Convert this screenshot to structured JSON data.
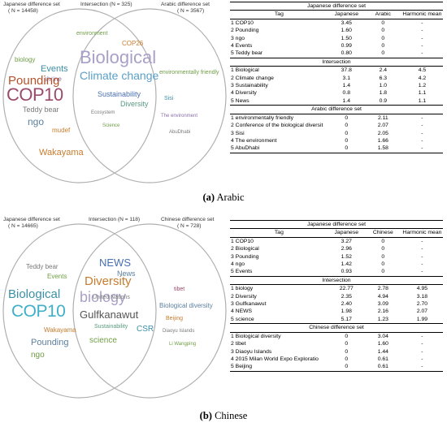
{
  "panel_a": {
    "caption": {
      "letter": "(a)",
      "text": " Arabic"
    },
    "venn": {
      "left_label": "Japanese difference set",
      "left_n": "( N = 14458)",
      "middle_label": "Intersection (N = 325)",
      "right_label": "Arabic difference set",
      "right_n": "( N = 3567)",
      "left_words": [
        "Pounding",
        "COP10",
        "biology",
        "Events",
        "shrine",
        "Teddy bear",
        "ngo",
        "mudef",
        "Wakayama"
      ],
      "middle_words": [
        "Biological",
        "Climate change",
        "Sustainability",
        "Diversity",
        "environment",
        "COP26",
        "Ecosystem",
        "Science"
      ],
      "right_words": [
        "environmentally friendly",
        "Sisi",
        "The environment",
        "AbuDhabi"
      ]
    },
    "table": {
      "sections": [
        {
          "title": "Japanese difference set",
          "rows": [
            [
              "1",
              "COP10",
              "3.45",
              "0",
              "-"
            ],
            [
              "2",
              "Pounding",
              "1.60",
              "0",
              "-"
            ],
            [
              "3",
              "ngo",
              "1.50",
              "0",
              "-"
            ],
            [
              "4",
              "Events",
              "0.99",
              "0",
              "-"
            ],
            [
              "5",
              "Teddy bear",
              "0.80",
              "0",
              "-"
            ]
          ]
        },
        {
          "title": "Intersection",
          "rows": [
            [
              "1",
              "Biological",
              "37.8",
              "2.4",
              "4.5"
            ],
            [
              "2",
              "Climate change",
              "3.1",
              "6.3",
              "4.2"
            ],
            [
              "3",
              "Sustainability",
              "1.4",
              "1.0",
              "1.2"
            ],
            [
              "4",
              "Diversity",
              "0.8",
              "1.8",
              "1.1"
            ],
            [
              "5",
              "News",
              "1.4",
              "0.9",
              "1.1"
            ]
          ]
        },
        {
          "title": "Arabic difference set",
          "rows": [
            [
              "1",
              "environmentally friendly",
              "0",
              "2.11",
              "-"
            ],
            [
              "2",
              "Conference of the biological diversit",
              "0",
              "2.07",
              "-"
            ],
            [
              "3",
              "Sisi",
              "0",
              "2.05",
              "-"
            ],
            [
              "4",
              "The environment",
              "0",
              "1.66",
              "-"
            ],
            [
              "5",
              "AbuDhabi",
              "0",
              "1.58",
              "-"
            ]
          ]
        }
      ],
      "header": {
        "tag": "Tag",
        "lang1": "Japanese",
        "lang2": "Arabic",
        "hmean": "Harmonic mean"
      }
    }
  },
  "panel_b": {
    "caption": {
      "letter": "(b)",
      "text": " Chinese"
    },
    "venn": {
      "left_label": "Japanese difference set",
      "left_n": "( N = 14665)",
      "middle_label": "Intersection (N = 118)",
      "right_label": "Chinese difference set",
      "right_n": "( N = 728)",
      "left_words": [
        "Biological",
        "COP10",
        "Pounding",
        "ngo",
        "Events",
        "Teddy bear",
        "Wakayama"
      ],
      "middle_words": [
        "NEWS",
        "Diversity",
        "biology",
        "Gulfkanawut",
        "United Nations",
        "Sustainability",
        "science",
        "News",
        "CSR"
      ],
      "right_words": [
        "Biological diversity",
        "tibet",
        "Beijing",
        "Diaoyu Islands",
        "Li Wangping"
      ]
    },
    "table": {
      "sections": [
        {
          "title": "Japanese difference set",
          "rows": [
            [
              "1",
              "COP10",
              "3.27",
              "0",
              "-"
            ],
            [
              "2",
              "Biological",
              "2.96",
              "0",
              "-"
            ],
            [
              "3",
              "Pounding",
              "1.52",
              "0",
              "-"
            ],
            [
              "4",
              "ngo",
              "1.42",
              "0",
              "-"
            ],
            [
              "5",
              "Events",
              "0.93",
              "0",
              "-"
            ]
          ]
        },
        {
          "title": "Intersection",
          "rows": [
            [
              "1",
              "biology",
              "22.77",
              "2.78",
              "4.95"
            ],
            [
              "2",
              "Diversity",
              "2.35",
              "4.94",
              "3.18"
            ],
            [
              "3",
              "Gulfkanawut",
              "2.40",
              "3.09",
              "2.70"
            ],
            [
              "4",
              "NEWS",
              "1.98",
              "2.16",
              "2.07"
            ],
            [
              "5",
              "science",
              "5.17",
              "1.23",
              "1.99"
            ]
          ]
        },
        {
          "title": "Chinese difference set",
          "rows": [
            [
              "1",
              "Biological diversity",
              "0",
              "3.04",
              "-"
            ],
            [
              "2",
              "tibet",
              "0",
              "1.60",
              "-"
            ],
            [
              "3",
              "Diaoyu Islands",
              "0",
              "1.44",
              "-"
            ],
            [
              "4",
              "2015 Milan World Expo Exploratio",
              "0",
              "0.61",
              "-"
            ],
            [
              "5",
              "Beijing",
              "0",
              "0.61",
              "-"
            ]
          ]
        }
      ],
      "header": {
        "tag": "Tag",
        "lang1": "Japanese",
        "lang2": "Chinese",
        "hmean": "Harmonic mean"
      }
    }
  },
  "colors": {
    "venn_stroke": "#b0b0b0",
    "word_palette": [
      "#5b7f9e",
      "#6f9e45",
      "#b4532a",
      "#8a6fa8",
      "#3b8fa6",
      "#c77c2d",
      "#7a7a7a",
      "#4a6fb0",
      "#9a4a6a",
      "#5a9a80"
    ]
  }
}
